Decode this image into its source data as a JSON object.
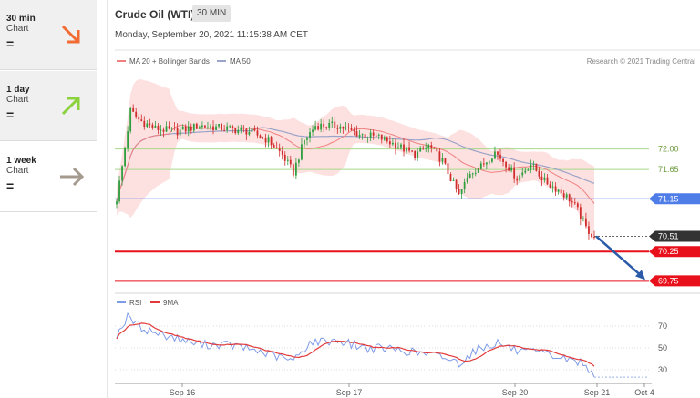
{
  "sidebar": {
    "items": [
      {
        "title": "30 min",
        "sub": "Chart",
        "eq": "=",
        "arrow": "down-right-arrow-icon",
        "color": "#f26a34"
      },
      {
        "title": "1 day",
        "sub": "Chart",
        "eq": "=",
        "arrow": "up-right-arrow-icon",
        "color": "#8bd23c"
      },
      {
        "title": "1 week",
        "sub": "Chart",
        "eq": "=",
        "arrow": "right-arrow-icon",
        "color": "#a49a8e"
      }
    ]
  },
  "header": {
    "title": "Crude Oil (WTI)",
    "timeframe": "30 MIN",
    "datetime": "Monday, September 20, 2021 11:15:38 AM CET"
  },
  "legend": {
    "ma20": "MA 20 + Bollinger Bands",
    "ma50": "MA 50",
    "credit": "Research © 2021 Trading Central",
    "rsi": "RSI",
    "rsi_ma": "9MA"
  },
  "colors": {
    "ma20": "#f08080",
    "ma50": "#9aa3c8",
    "band": "#fdd8d8",
    "up": "#2e9e3e",
    "down": "#d02c2c",
    "support": "#e8101a",
    "pivot": "#4f7de8",
    "resistance": "#a8d88a",
    "rsi": "#7e9be8",
    "rsi_ma": "#e23a3a",
    "projection": "#2a5aa8"
  },
  "chart_data": {
    "type": "candlestick",
    "price_axis": {
      "ylim": [
        69.6,
        73.3
      ]
    },
    "levels": [
      {
        "value": 72.0,
        "label": "72.00",
        "kind": "resistance"
      },
      {
        "value": 71.65,
        "label": "71.65",
        "kind": "resistance"
      },
      {
        "value": 71.15,
        "label": "71.15",
        "kind": "pivot"
      },
      {
        "value": 70.51,
        "label": "70.51",
        "kind": "last"
      },
      {
        "value": 70.25,
        "label": "70.25",
        "kind": "support"
      },
      {
        "value": 69.75,
        "label": "69.75",
        "kind": "support"
      }
    ],
    "projection": {
      "from": 70.51,
      "to": 69.75
    },
    "x_ticks": [
      "Sep 16",
      "Sep 17",
      "Sep 20",
      "Sep 21",
      "Oct 4"
    ],
    "anchors": [
      {
        "t": 0,
        "v": 71.15
      },
      {
        "t": 2,
        "v": 71.7
      },
      {
        "t": 5,
        "v": 72.65
      },
      {
        "t": 8,
        "v": 72.5
      },
      {
        "t": 14,
        "v": 72.35
      },
      {
        "t": 22,
        "v": 72.3
      },
      {
        "t": 30,
        "v": 72.4
      },
      {
        "t": 40,
        "v": 72.35
      },
      {
        "t": 48,
        "v": 72.3
      },
      {
        "t": 55,
        "v": 72.15
      },
      {
        "t": 60,
        "v": 71.9
      },
      {
        "t": 64,
        "v": 71.6
      },
      {
        "t": 68,
        "v": 72.15
      },
      {
        "t": 72,
        "v": 72.4
      },
      {
        "t": 80,
        "v": 72.4
      },
      {
        "t": 88,
        "v": 72.25
      },
      {
        "t": 95,
        "v": 72.2
      },
      {
        "t": 102,
        "v": 72.05
      },
      {
        "t": 108,
        "v": 71.9
      },
      {
        "t": 113,
        "v": 72.05
      },
      {
        "t": 118,
        "v": 71.8
      },
      {
        "t": 121,
        "v": 71.5
      },
      {
        "t": 124,
        "v": 71.2
      },
      {
        "t": 128,
        "v": 71.6
      },
      {
        "t": 132,
        "v": 71.7
      },
      {
        "t": 137,
        "v": 71.95
      },
      {
        "t": 141,
        "v": 71.75
      },
      {
        "t": 145,
        "v": 71.5
      },
      {
        "t": 150,
        "v": 71.75
      },
      {
        "t": 155,
        "v": 71.45
      },
      {
        "t": 160,
        "v": 71.3
      },
      {
        "t": 164,
        "v": 71.15
      },
      {
        "t": 167,
        "v": 70.95
      },
      {
        "t": 170,
        "v": 70.65
      },
      {
        "t": 173,
        "v": 70.5
      }
    ],
    "rsi_axis": {
      "ylim": [
        20,
        85
      ],
      "ticks": [
        70,
        50,
        30
      ]
    },
    "rsi_anchors": [
      {
        "t": 0,
        "v": 62
      },
      {
        "t": 4,
        "v": 78
      },
      {
        "t": 10,
        "v": 67
      },
      {
        "t": 20,
        "v": 60
      },
      {
        "t": 30,
        "v": 53
      },
      {
        "t": 40,
        "v": 53
      },
      {
        "t": 50,
        "v": 48
      },
      {
        "t": 58,
        "v": 42
      },
      {
        "t": 64,
        "v": 38
      },
      {
        "t": 70,
        "v": 55
      },
      {
        "t": 80,
        "v": 57
      },
      {
        "t": 90,
        "v": 50
      },
      {
        "t": 100,
        "v": 49
      },
      {
        "t": 110,
        "v": 45
      },
      {
        "t": 118,
        "v": 42
      },
      {
        "t": 124,
        "v": 36
      },
      {
        "t": 130,
        "v": 48
      },
      {
        "t": 138,
        "v": 55
      },
      {
        "t": 146,
        "v": 46
      },
      {
        "t": 154,
        "v": 45
      },
      {
        "t": 162,
        "v": 40
      },
      {
        "t": 168,
        "v": 37
      },
      {
        "t": 173,
        "v": 27
      }
    ]
  }
}
